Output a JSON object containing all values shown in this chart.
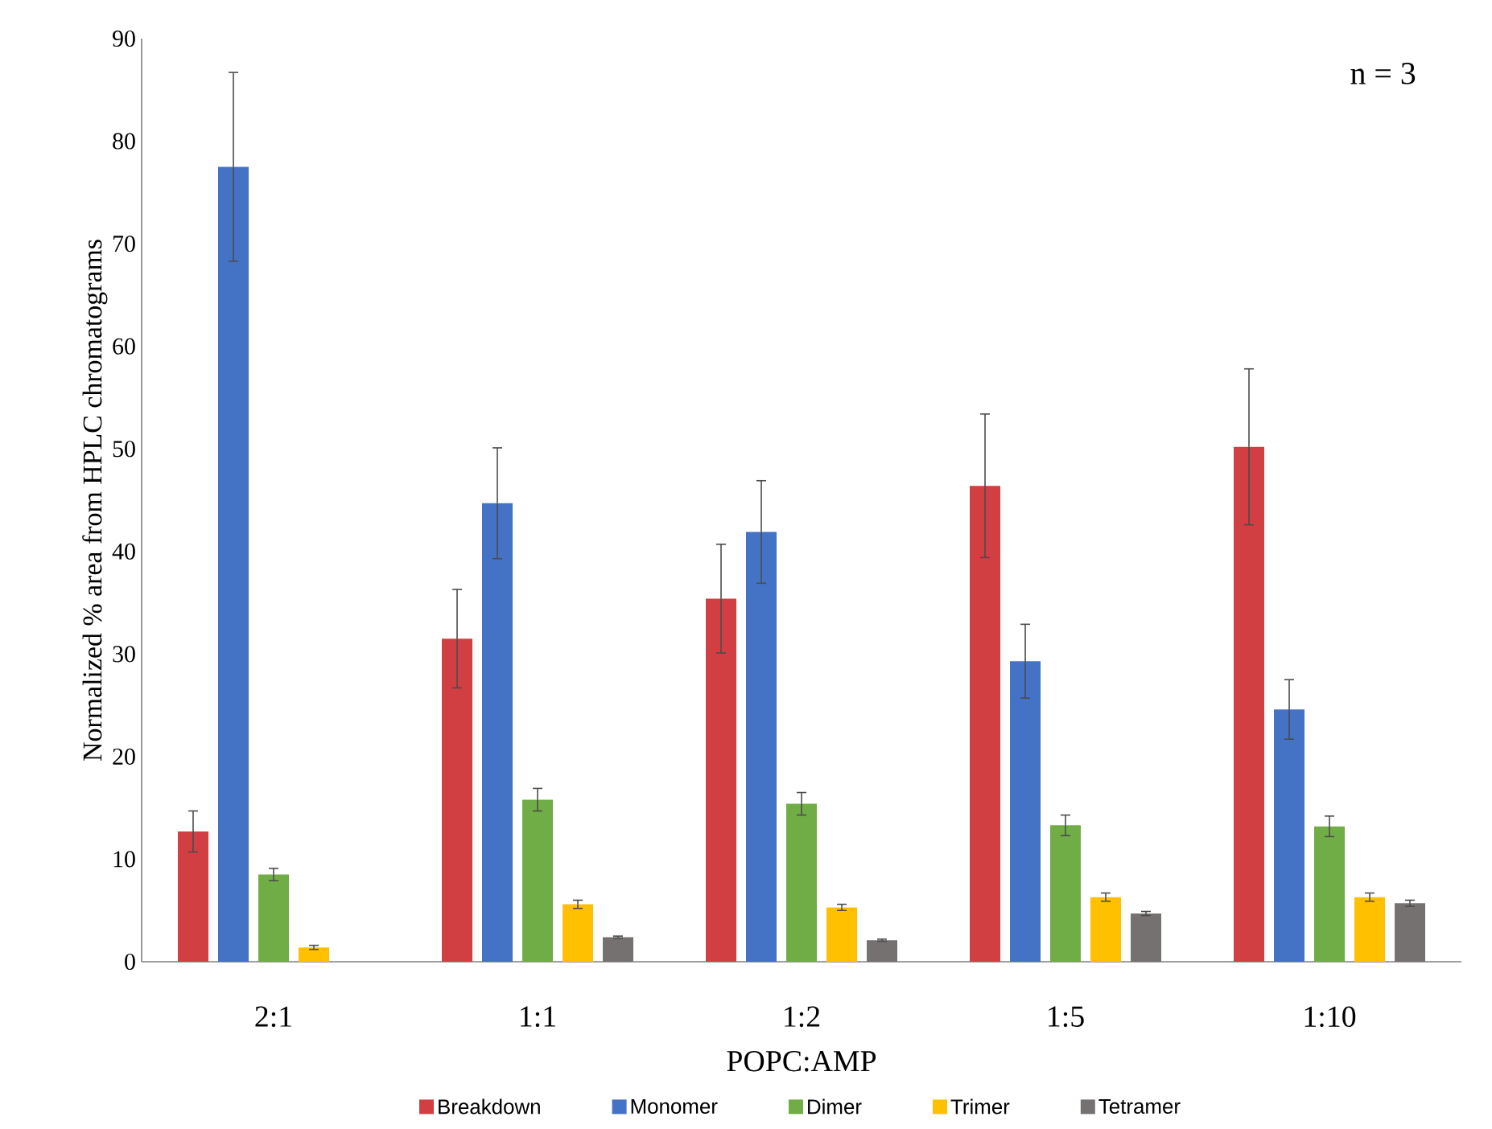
{
  "chart_data": {
    "type": "bar",
    "xlabel": "POPC:AMP",
    "ylabel": "Normalized % area from HPLC chromatograms",
    "categories": [
      "2:1",
      "1:1",
      "1:2",
      "1:5",
      "1:10"
    ],
    "series": [
      {
        "name": "Breakdown",
        "color": "#d13f43",
        "values": [
          12.7,
          31.5,
          35.4,
          46.4,
          50.2
        ],
        "errors": [
          2.0,
          4.8,
          5.3,
          7.0,
          7.6
        ]
      },
      {
        "name": "Monomer",
        "color": "#4472c4",
        "values": [
          77.5,
          44.7,
          41.9,
          29.3,
          24.6
        ],
        "errors": [
          9.2,
          5.4,
          5.0,
          3.6,
          2.9
        ]
      },
      {
        "name": "Dimer",
        "color": "#70ad47",
        "values": [
          8.5,
          15.8,
          15.4,
          13.3,
          13.2
        ],
        "errors": [
          0.6,
          1.1,
          1.1,
          1.0,
          1.0
        ]
      },
      {
        "name": "Trimer",
        "color": "#ffc000",
        "values": [
          1.4,
          5.6,
          5.3,
          6.3,
          6.3
        ],
        "errors": [
          0.2,
          0.4,
          0.3,
          0.4,
          0.4
        ]
      },
      {
        "name": "Tetramer",
        "color": "#767171",
        "values": [
          null,
          2.4,
          2.1,
          4.7,
          5.7
        ],
        "errors": [
          null,
          0.1,
          0.1,
          0.2,
          0.3
        ]
      }
    ],
    "ylim": [
      0,
      90
    ],
    "yticks": [
      0,
      10,
      20,
      30,
      40,
      50,
      60,
      70,
      80,
      90
    ],
    "annotations": [
      "n = 3"
    ],
    "legend": "bottom",
    "grid": false
  }
}
